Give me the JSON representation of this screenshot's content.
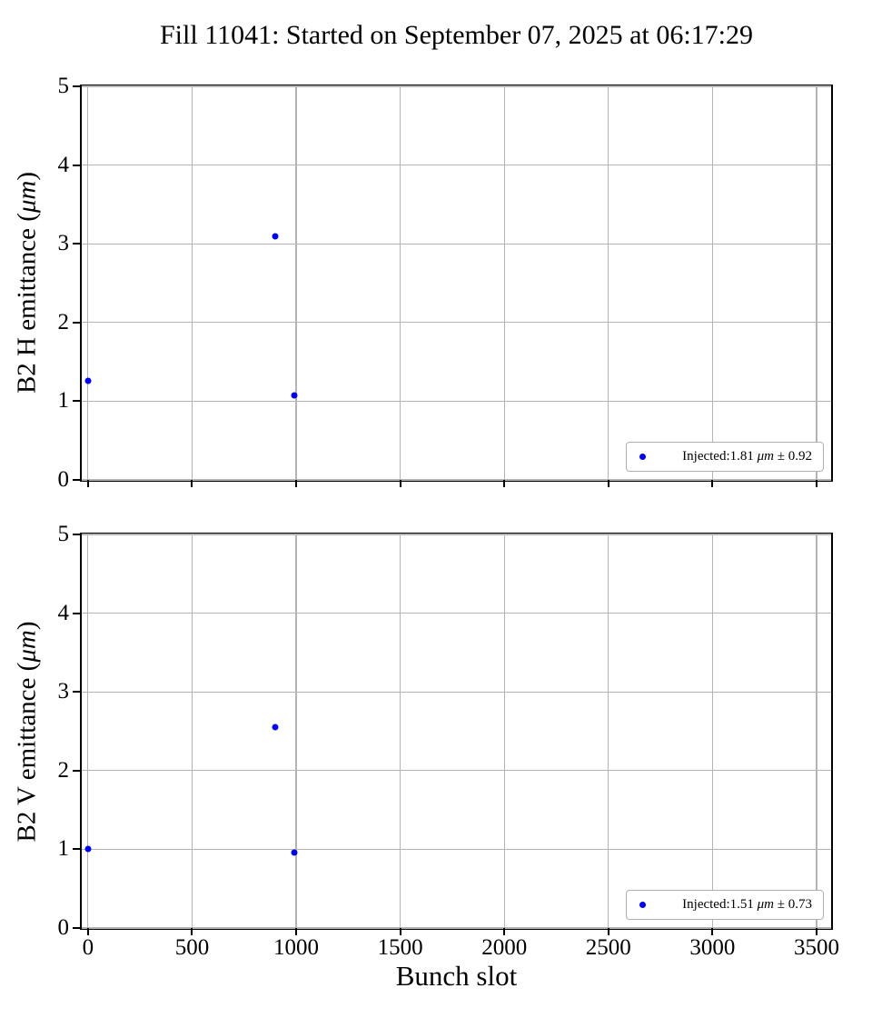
{
  "title": "Fill 11041: Started on September 07, 2025 at 06:17:29",
  "xlabel": "Bunch slot",
  "style": {
    "background": "#ffffff",
    "marker_color": "#0000ff",
    "grid_color": "#b4b4b4",
    "spine_color": "#000000",
    "legend_border_color": "#b0b0b0"
  },
  "chart_data": [
    {
      "type": "scatter",
      "panel": "top",
      "ylabel": {
        "pre": "B2 H emittance (",
        "unit": "μm",
        "post": ")"
      },
      "xlim": [
        -30,
        3570
      ],
      "ylim": [
        0,
        5
      ],
      "xticks": [
        0,
        500,
        1000,
        1500,
        2000,
        2500,
        3000,
        3500
      ],
      "yticks": [
        0,
        1,
        2,
        3,
        4,
        5
      ],
      "grid": true,
      "show_xticklabels": false,
      "series": [
        {
          "name": "Injected",
          "mean": 1.81,
          "std": 0.92,
          "points": [
            [
              0,
              1.26
            ],
            [
              900,
              3.09
            ],
            [
              990,
              1.07
            ]
          ]
        }
      ],
      "legend": {
        "pre": "Injected:1.81 ",
        "unit": "μm",
        "post": " ± 0.92",
        "position": "lower right"
      }
    },
    {
      "type": "scatter",
      "panel": "bottom",
      "ylabel": {
        "pre": "B2 V emittance (",
        "unit": "μm",
        "post": ")"
      },
      "xlim": [
        -30,
        3570
      ],
      "ylim": [
        0,
        5
      ],
      "xticks": [
        0,
        500,
        1000,
        1500,
        2000,
        2500,
        3000,
        3500
      ],
      "yticks": [
        0,
        1,
        2,
        3,
        4,
        5
      ],
      "grid": true,
      "show_xticklabels": true,
      "series": [
        {
          "name": "Injected",
          "mean": 1.51,
          "std": 0.73,
          "points": [
            [
              0,
              1.01
            ],
            [
              900,
              2.55
            ],
            [
              990,
              0.96
            ]
          ]
        }
      ],
      "legend": {
        "pre": "Injected:1.51 ",
        "unit": "μm",
        "post": " ± 0.73",
        "position": "lower right"
      }
    }
  ]
}
